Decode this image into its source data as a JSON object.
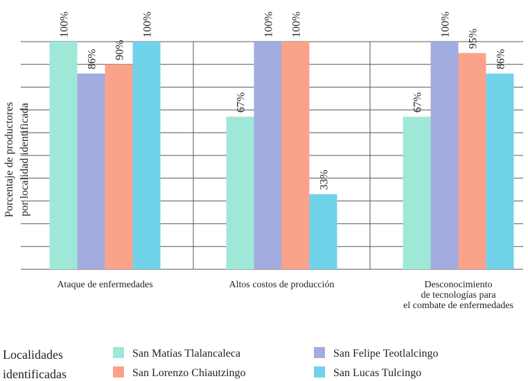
{
  "chart_data": {
    "type": "bar",
    "y_label": "Porcentaje de productores\npor localidad identificada",
    "categories": [
      "Ataque de enfermedades",
      "Altos costos de producción",
      "Desconocimiento\nde tecnologías para\nel combate de enfermedades"
    ],
    "series": [
      {
        "name": "San Matías Tlalancaleca",
        "color": "#9fe8d7",
        "values": [
          100,
          67,
          67
        ],
        "value_labels": [
          "100%",
          "67%",
          "67%"
        ]
      },
      {
        "name": "San Felipe Teotlalcingo",
        "color": "#a3acdf",
        "values": [
          86,
          100,
          100
        ],
        "value_labels": [
          "86%",
          "100%",
          "100%"
        ]
      },
      {
        "name": "San Lorenzo Chiautzingo",
        "color": "#fba38a",
        "values": [
          90,
          100,
          95
        ],
        "value_labels": [
          "90%",
          "100%",
          "95%"
        ]
      },
      {
        "name": "San Lucas Tulcingo",
        "color": "#70d3ea",
        "values": [
          100,
          33,
          86
        ],
        "value_labels": [
          "100%",
          "33%",
          "86%"
        ]
      }
    ],
    "ylim": [
      0,
      100
    ],
    "yticks": [
      0,
      10,
      20,
      30,
      40,
      50,
      60,
      70,
      80,
      90,
      100
    ],
    "grid": true,
    "legend_title": "Localidades\nidentificadas"
  }
}
